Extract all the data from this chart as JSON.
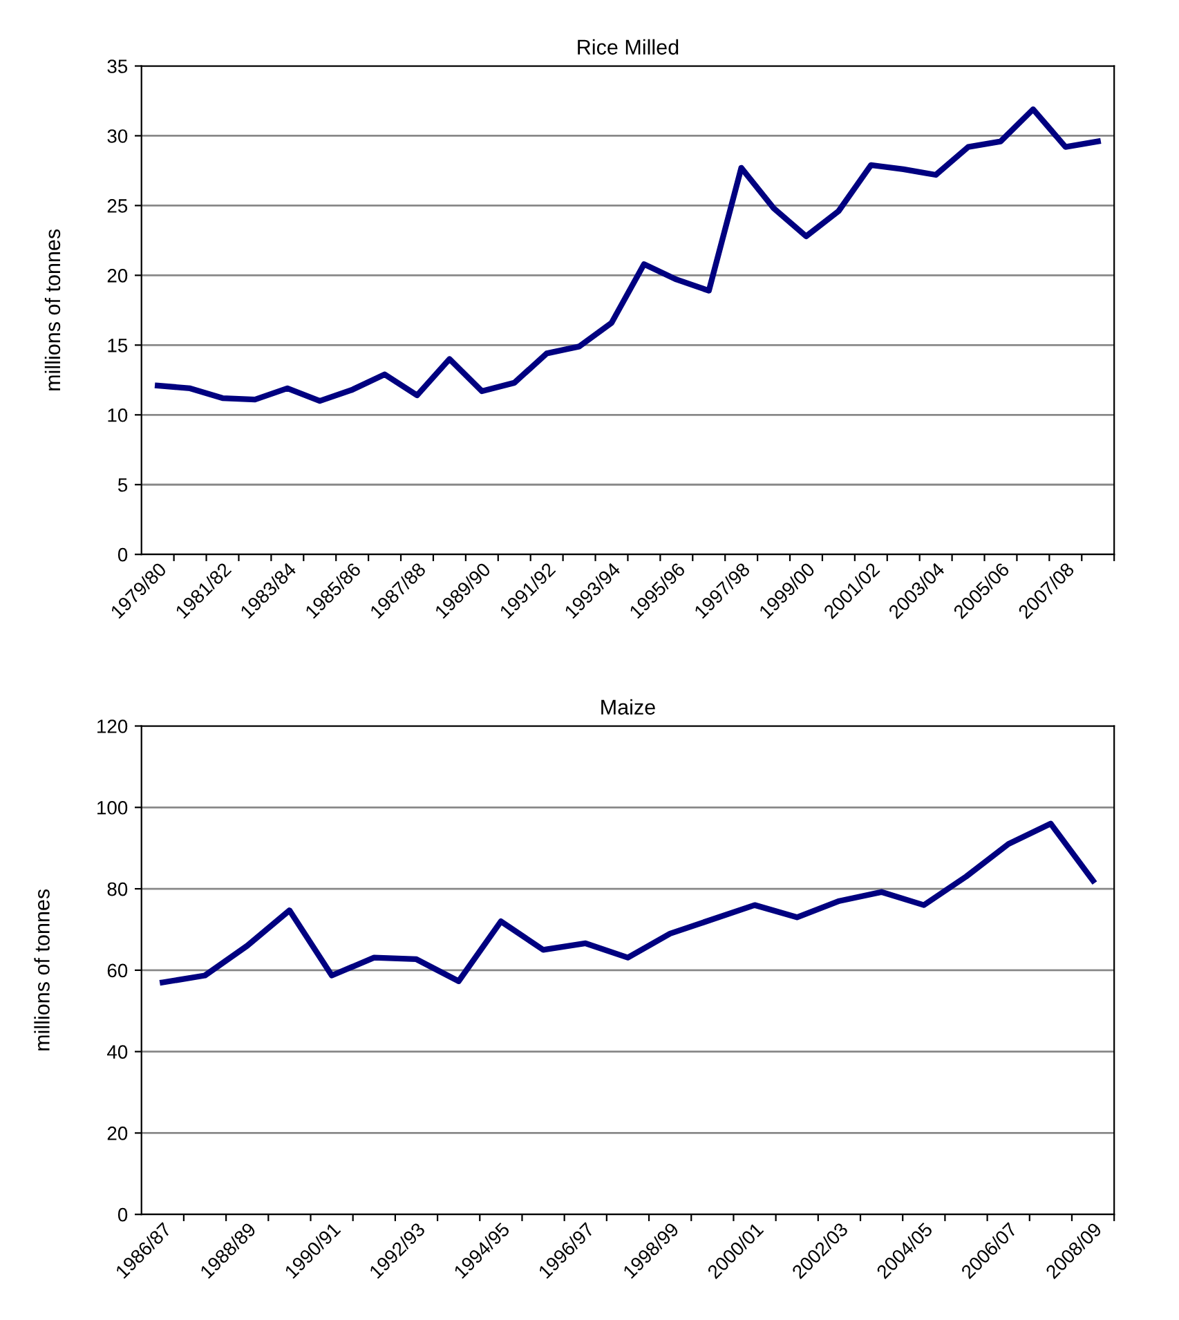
{
  "chart_data": [
    {
      "type": "line",
      "title": "Rice Milled",
      "ylabel": "millions of tonnes",
      "categories": [
        "1979/80",
        null,
        "1981/82",
        null,
        "1983/84",
        null,
        "1985/86",
        null,
        "1987/88",
        null,
        "1989/90",
        null,
        "1991/92",
        null,
        "1993/94",
        null,
        "1995/96",
        null,
        "1997/98",
        null,
        "1999/00",
        null,
        "2001/02",
        null,
        "2003/04",
        null,
        "2005/06",
        null,
        "2007/08",
        null
      ],
      "series": [
        {
          "color": "#000080",
          "values": [
            12.1,
            11.9,
            11.2,
            11.1,
            11.9,
            11.0,
            11.8,
            12.9,
            11.4,
            14.0,
            11.7,
            12.3,
            14.4,
            14.9,
            16.6,
            20.8,
            19.7,
            18.9,
            27.7,
            24.8,
            22.8,
            24.6,
            27.9,
            27.6,
            27.2,
            29.2,
            29.6,
            31.9,
            29.2,
            29.6
          ]
        }
      ],
      "ylim": [
        0,
        35
      ],
      "yticks": [
        0,
        5,
        10,
        15,
        20,
        25,
        30,
        35
      ],
      "grid": "y",
      "marker": "none",
      "line_style": "solid"
    },
    {
      "type": "line",
      "title": "Maize",
      "ylabel": "millions of tonnes",
      "categories": [
        "1986/87",
        null,
        "1988/89",
        null,
        "1990/91",
        null,
        "1992/93",
        null,
        "1994/95",
        null,
        "1996/97",
        null,
        "1998/99",
        null,
        "2000/01",
        null,
        "2002/03",
        null,
        "2004/05",
        null,
        "2006/07",
        null,
        "2008/09"
      ],
      "series": [
        {
          "color": "#000080",
          "values": [
            57,
            58.7,
            66,
            74.7,
            58.7,
            63.1,
            62.7,
            57.3,
            72,
            65,
            66.6,
            63.1,
            69,
            72.5,
            76,
            73,
            77,
            79.2,
            76,
            83,
            91,
            96,
            82
          ]
        }
      ],
      "ylim": [
        0,
        120
      ],
      "yticks": [
        0,
        20,
        40,
        60,
        80,
        100,
        120
      ],
      "grid": "y",
      "marker": "none",
      "line_style": "solid"
    }
  ]
}
